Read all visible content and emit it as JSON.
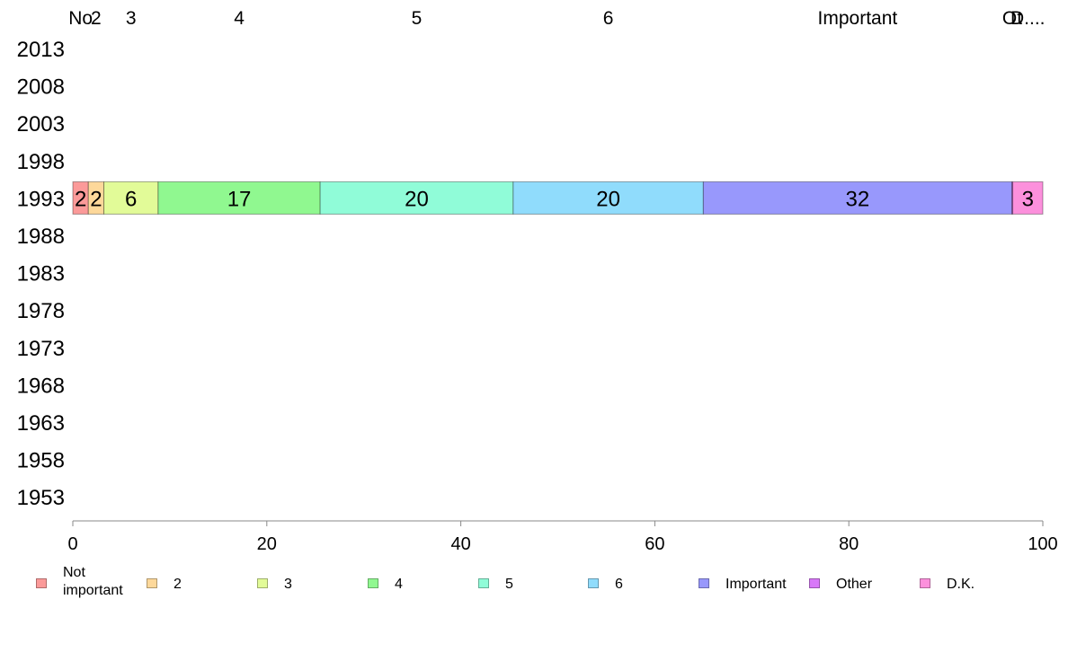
{
  "chart_data": {
    "type": "stacked-bar-horizontal",
    "years": [
      "2013",
      "2008",
      "2003",
      "1998",
      "1993",
      "1988",
      "1983",
      "1978",
      "1973",
      "1968",
      "1963",
      "1958",
      "1953"
    ],
    "categories": [
      "Not important",
      "2",
      "3",
      "4",
      "5",
      "6",
      "Important",
      "Other",
      "D.K."
    ],
    "top_labels": [
      "No",
      "2",
      "3",
      "4",
      "5",
      "6",
      "Important",
      "Ot",
      "D...."
    ],
    "colors": [
      "#fb9a99",
      "#fdd89a",
      "#e2fb98",
      "#90f890",
      "#90fcd8",
      "#90dcfc",
      "#9898fc",
      "#d878f8",
      "#fc90dc"
    ],
    "series": [
      {
        "year": "1993",
        "values": [
          1.6,
          1.6,
          5.6,
          16.7,
          19.9,
          19.6,
          31.8,
          0.1,
          3.1
        ],
        "labels": [
          "2",
          "2",
          "6",
          "17",
          "20",
          "20",
          "32",
          "",
          "3"
        ]
      }
    ],
    "xlim": [
      0,
      100
    ],
    "xticks": [
      0,
      20,
      40,
      60,
      80,
      100
    ],
    "grid": false,
    "legend_position": "bottom"
  },
  "legend": [
    {
      "label": "Not important",
      "color": "#fb9a99"
    },
    {
      "label": "2",
      "color": "#fdd89a"
    },
    {
      "label": "3",
      "color": "#e2fb98"
    },
    {
      "label": "4",
      "color": "#90f890"
    },
    {
      "label": "5",
      "color": "#90fcd8"
    },
    {
      "label": "6",
      "color": "#90dcfc"
    },
    {
      "label": "Important",
      "color": "#9898fc"
    },
    {
      "label": "Other",
      "color": "#d878f8"
    },
    {
      "label": "D.K.",
      "color": "#fc90dc"
    }
  ]
}
